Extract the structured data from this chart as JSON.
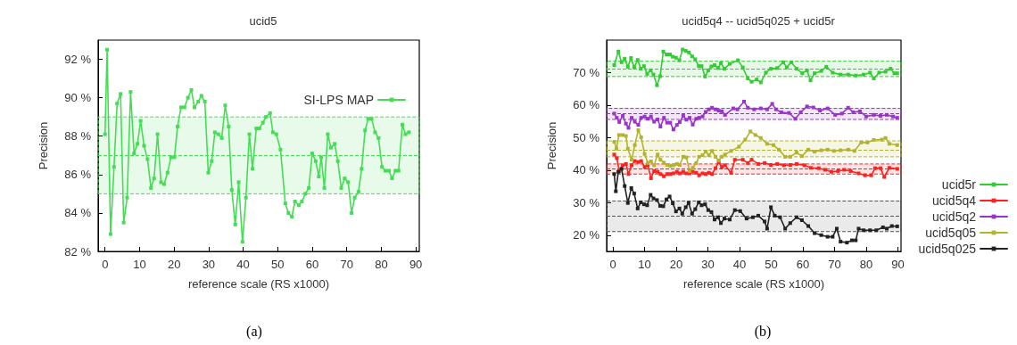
{
  "chart_data": [
    {
      "type": "line",
      "title": "ucid5",
      "xlabel": "reference scale (RS x1000)",
      "ylabel": "Precision",
      "annotations": [
        "(a)"
      ],
      "xlim": [
        -2,
        91
      ],
      "xticks": [
        0,
        10,
        20,
        30,
        40,
        50,
        60,
        70,
        80,
        90
      ],
      "ylim": [
        82,
        93
      ],
      "yticks": [
        {
          "value": 82,
          "label": "82 %"
        },
        {
          "value": 84,
          "label": "84 %"
        },
        {
          "value": 86,
          "label": "86 %"
        },
        {
          "value": 88,
          "label": "88 %"
        },
        {
          "value": 90,
          "label": "90 %"
        },
        {
          "value": 92,
          "label": "92 %"
        }
      ],
      "grid": false,
      "legend": "top right",
      "marker": "square",
      "line_style": "solid",
      "bands": [
        {
          "axis": "y",
          "from": 85,
          "to": 89,
          "color": "#44dd55"
        }
      ],
      "ref_lines": [
        {
          "axis": "y",
          "value": 87,
          "color": "#44dd55",
          "line_style": "dashed"
        }
      ],
      "series": [
        {
          "name": "SI-LPS MAP",
          "color": "#44dd55",
          "x": [
            0,
            0.6,
            1.6,
            2.6,
            3.5,
            4.5,
            5.4,
            6.4,
            7.4,
            8.4,
            9.4,
            10.3,
            11.3,
            12.3,
            13.3,
            14.2,
            15.2,
            16.2,
            17.1,
            18.1,
            19.1,
            20.1,
            21.0,
            22.0,
            23.0,
            24.0,
            25.0,
            25.9,
            27.0,
            27.9,
            28.9,
            29.9,
            30.9,
            31.8,
            32.8,
            33.8,
            34.8,
            35.8,
            36.7,
            37.7,
            38.7,
            39.8,
            40.8,
            41.8,
            42.7,
            43.8,
            44.7,
            45.7,
            46.6,
            47.8,
            48.6,
            49.6,
            50.8,
            52.2,
            53.1,
            54.1,
            55.0,
            56.1,
            57.0,
            58.0,
            59.0,
            60.0,
            61.0,
            61.9,
            62.6,
            63.5,
            64.5,
            65.4,
            66.5,
            67.4,
            68.4,
            69.4,
            70.4,
            71.4,
            72.3,
            73.4,
            74.3,
            75.3,
            76.2,
            77.2,
            78.2,
            79.2,
            80.2,
            81.2,
            82.2,
            83.1,
            84.1,
            85.0,
            86.1,
            87.0,
            88.0
          ],
          "values": [
            88.1,
            92.5,
            82.9,
            86.4,
            89.7,
            90.2,
            83.5,
            84.8,
            90.3,
            87.1,
            87.6,
            88.8,
            87.5,
            86.8,
            85.3,
            85.8,
            88.1,
            85.6,
            85.5,
            86.1,
            86.9,
            86.9,
            88.5,
            89.5,
            89.5,
            90.0,
            90.4,
            89.5,
            89.8,
            90.1,
            89.8,
            86.1,
            86.7,
            88.2,
            88.1,
            87.9,
            89.6,
            88.5,
            85.2,
            83.4,
            85.6,
            82.5,
            84.8,
            88.1,
            86.3,
            88.4,
            88.4,
            88.7,
            89.0,
            89.2,
            88.2,
            88.1,
            87.3,
            84.5,
            84.0,
            83.8,
            84.6,
            84.4,
            84.6,
            85.0,
            85.3,
            87.1,
            86.7,
            85.9,
            86.9,
            85.3,
            88.1,
            87.4,
            87.6,
            86.7,
            85.3,
            85.8,
            85.6,
            84.0,
            84.8,
            85.1,
            86.3,
            88.3,
            88.9,
            88.9,
            88.2,
            87.9,
            86.4,
            86.2,
            86.2,
            85.8,
            86.2,
            86.2,
            88.6,
            88.1,
            88.2
          ]
        }
      ]
    },
    {
      "type": "line",
      "title": "ucid5q4 -- ucid5q025 + ucid5r",
      "xlabel": "reference scale (RS x1000)",
      "ylabel": "Precision",
      "annotations": [
        "(b)"
      ],
      "xlim": [
        -2,
        91
      ],
      "xticks": [
        0,
        10,
        20,
        30,
        40,
        50,
        60,
        70,
        80,
        90
      ],
      "ylim": [
        15,
        80
      ],
      "yticks": [
        {
          "value": 20,
          "label": "20 %"
        },
        {
          "value": 30,
          "label": "30 %"
        },
        {
          "value": 40,
          "label": "40 %"
        },
        {
          "value": 50,
          "label": "50 %"
        },
        {
          "value": 60,
          "label": "60 %"
        },
        {
          "value": 70,
          "label": "70 %"
        }
      ],
      "grid": false,
      "legend": "right",
      "marker": "square",
      "line_style": "solid",
      "bands": [
        {
          "axis": "y",
          "from": 68.8,
          "to": 73.5,
          "color": "#33cc33"
        },
        {
          "axis": "y",
          "from": 55.6,
          "to": 59.0,
          "color": "#9933cc"
        },
        {
          "axis": "y",
          "from": 44.1,
          "to": 49.0,
          "color": "#b3b32e"
        },
        {
          "axis": "y",
          "from": 38.8,
          "to": 41.9,
          "color": "#ff2020"
        },
        {
          "axis": "y",
          "from": 21.1,
          "to": 30.5,
          "color": "#555555"
        }
      ],
      "ref_lines": [
        {
          "axis": "y",
          "value": 71.2,
          "color": "#33cc33",
          "line_style": "dashed"
        },
        {
          "axis": "y",
          "value": 57.4,
          "color": "#9933cc",
          "line_style": "dashed"
        },
        {
          "axis": "y",
          "value": 46.3,
          "color": "#b3b32e",
          "line_style": "dashed"
        },
        {
          "axis": "y",
          "value": 40.4,
          "color": "#ff2020",
          "line_style": "dashed"
        },
        {
          "axis": "y",
          "value": 25.9,
          "color": "#555555",
          "line_style": "dashed"
        }
      ],
      "series": [
        {
          "name": "ucid5r",
          "color": "#33cc33",
          "x": [
            0.4,
            1.7,
            2.7,
            3.7,
            4.7,
            5.7,
            6.7,
            7.8,
            8.8,
            9.8,
            10.8,
            11.9,
            12.8,
            13.9,
            14.9,
            15.9,
            16.9,
            18.0,
            18.9,
            19.9,
            21.0,
            22.0,
            23.0,
            24.0,
            25.0,
            26.0,
            27.1,
            28.0,
            29.1,
            30.1,
            31.1,
            32.1,
            33.2,
            34.1,
            35.2,
            36.9,
            39.5,
            41.0,
            42.6,
            43.8,
            45.4,
            46.7,
            48.3,
            49.9,
            51.9,
            53.8,
            54.9,
            56.3,
            58.0,
            59.8,
            61.3,
            62.4,
            63.7,
            65.8,
            67.4,
            69.4,
            71.9,
            74.3,
            76.7,
            79.2,
            81.2,
            82.4,
            84.1,
            86.1,
            87.7,
            88.9,
            89.8
          ],
          "values": [
            72.3,
            76.5,
            73.2,
            74.3,
            71.8,
            74.5,
            71.6,
            73.9,
            71.2,
            72.0,
            69.6,
            70.7,
            69.4,
            66.1,
            68.9,
            76.5,
            75.6,
            75.6,
            74.9,
            74.6,
            73.8,
            77.1,
            76.7,
            76.2,
            75.0,
            74.1,
            72.0,
            72.0,
            68.8,
            70.7,
            71.9,
            72.3,
            71.4,
            72.9,
            71.2,
            72.7,
            73.8,
            71.6,
            68.2,
            67.2,
            67.9,
            67.0,
            70.0,
            71.2,
            71.4,
            73.2,
            71.6,
            73.2,
            71.2,
            69.8,
            70.7,
            67.6,
            69.8,
            70.5,
            71.8,
            70.0,
            69.4,
            69.4,
            69.1,
            69.4,
            70.0,
            68.2,
            70.0,
            70.3,
            71.2,
            69.8,
            69.8
          ]
        },
        {
          "name": "ucid5q4",
          "color": "#ff2020",
          "x": [
            0.4,
            1.2,
            2.0,
            3.1,
            4.1,
            4.9,
            5.9,
            6.9,
            8.0,
            8.9,
            10.0,
            11.0,
            12.0,
            13.0,
            14.1,
            15.0,
            16.1,
            17.1,
            18.1,
            19.1,
            20.2,
            21.1,
            22.2,
            23.2,
            24.2,
            25.2,
            26.3,
            27.2,
            28.3,
            29.3,
            30.3,
            31.3,
            32.4,
            33.4,
            34.4,
            35.4,
            37.3,
            38.5,
            41.0,
            42.6,
            43.8,
            45.9,
            47.9,
            49.9,
            51.9,
            54.0,
            56.0,
            58.0,
            60.5,
            62.5,
            65.0,
            67.0,
            69.0,
            71.1,
            73.1,
            75.1,
            77.6,
            79.6,
            81.6,
            82.8,
            84.5,
            85.7,
            87.3,
            89.8
          ],
          "values": [
            44.8,
            43.7,
            39.7,
            41.5,
            41.9,
            38.8,
            41.5,
            42.8,
            42.5,
            42.8,
            41.0,
            41.5,
            37.5,
            39.7,
            39.5,
            38.8,
            38.1,
            38.8,
            38.8,
            39.0,
            39.5,
            39.0,
            39.5,
            39.0,
            39.0,
            39.5,
            39.2,
            38.4,
            39.0,
            38.8,
            39.2,
            38.8,
            40.6,
            42.5,
            41.0,
            41.5,
            39.2,
            43.2,
            43.2,
            42.2,
            43.2,
            41.9,
            42.2,
            41.6,
            41.9,
            41.5,
            41.6,
            41.9,
            41.5,
            40.7,
            40.6,
            40.1,
            39.5,
            39.7,
            40.1,
            39.7,
            39.0,
            38.4,
            38.4,
            40.6,
            40.6,
            37.9,
            40.7,
            40.4
          ]
        },
        {
          "name": "ucid5q2",
          "color": "#9933cc",
          "x": [
            0.4,
            1.2,
            2.0,
            3.1,
            4.1,
            4.9,
            5.9,
            6.9,
            8.0,
            8.9,
            10.0,
            11.0,
            12.0,
            13.0,
            14.1,
            15.0,
            16.1,
            17.1,
            18.1,
            19.1,
            20.2,
            21.1,
            22.2,
            23.2,
            24.2,
            25.2,
            26.3,
            27.2,
            28.3,
            29.3,
            30.3,
            31.3,
            32.4,
            33.4,
            34.4,
            35.4,
            38.0,
            39.3,
            41.4,
            42.6,
            44.6,
            46.7,
            48.7,
            50.3,
            51.5,
            53.2,
            55.6,
            57.6,
            59.3,
            61.3,
            63.3,
            65.4,
            67.8,
            70.2,
            72.3,
            74.3,
            75.9,
            78.0,
            80.0,
            82.4,
            84.5,
            86.5,
            88.5,
            89.8
          ],
          "values": [
            57.4,
            56.1,
            54.8,
            56.7,
            54.3,
            53.0,
            56.1,
            54.9,
            53.9,
            56.1,
            56.5,
            55.8,
            56.5,
            54.9,
            55.6,
            53.4,
            56.1,
            54.6,
            54.6,
            52.5,
            53.9,
            54.8,
            56.7,
            55.5,
            56.1,
            54.0,
            55.8,
            56.1,
            56.5,
            57.9,
            58.7,
            59.2,
            58.7,
            58.3,
            58.1,
            57.0,
            59.0,
            58.7,
            61.1,
            59.2,
            58.7,
            59.0,
            58.7,
            60.4,
            58.7,
            57.8,
            57.6,
            55.8,
            57.8,
            59.6,
            59.3,
            58.3,
            59.0,
            57.0,
            57.4,
            59.2,
            57.8,
            58.1,
            56.5,
            57.0,
            56.7,
            57.0,
            56.5,
            56.1
          ]
        },
        {
          "name": "ucid5q05",
          "color": "#b3b32e",
          "x": [
            0.4,
            1.1,
            1.9,
            3.1,
            4.1,
            4.7,
            5.9,
            6.9,
            8.0,
            8.9,
            10.0,
            11.0,
            12.0,
            13.0,
            14.1,
            15.0,
            16.1,
            17.1,
            18.1,
            19.1,
            20.2,
            21.1,
            22.2,
            23.2,
            24.2,
            25.2,
            26.3,
            27.2,
            28.3,
            29.3,
            30.3,
            31.3,
            32.4,
            33.4,
            34.4,
            35.4,
            37.3,
            39.8,
            41.8,
            43.4,
            45.0,
            46.7,
            48.7,
            50.7,
            52.4,
            54.4,
            56.0,
            58.0,
            59.7,
            61.7,
            63.7,
            65.8,
            67.8,
            69.8,
            71.9,
            74.3,
            76.3,
            78.4,
            80.4,
            82.4,
            84.9,
            86.1,
            87.3,
            89.8
          ],
          "values": [
            48.7,
            46.6,
            50.8,
            50.8,
            50.5,
            46.6,
            43.2,
            47.7,
            52.3,
            50.1,
            45.0,
            42.2,
            42.7,
            41.5,
            44.8,
            43.2,
            42.3,
            41.6,
            41.3,
            41.5,
            41.9,
            41.6,
            44.1,
            43.9,
            39.7,
            40.7,
            42.2,
            44.1,
            44.6,
            45.7,
            44.6,
            45.9,
            44.1,
            43.0,
            44.1,
            44.8,
            45.9,
            47.2,
            49.4,
            51.9,
            50.8,
            49.9,
            48.1,
            47.7,
            46.3,
            44.1,
            44.1,
            45.4,
            44.3,
            46.3,
            45.7,
            46.1,
            46.3,
            45.9,
            46.1,
            46.3,
            45.9,
            48.5,
            48.5,
            49.3,
            49.4,
            49.9,
            48.1,
            47.7
          ]
        },
        {
          "name": "ucid5q025",
          "color": "#222222",
          "x": [
            0.4,
            0.9,
            1.7,
            2.7,
            3.7,
            4.7,
            5.8,
            6.7,
            7.8,
            8.8,
            9.8,
            10.8,
            11.9,
            12.8,
            13.9,
            14.9,
            15.9,
            16.9,
            17.9,
            18.9,
            19.9,
            21.0,
            21.9,
            23.0,
            23.9,
            25.0,
            26.0,
            27.1,
            28.0,
            29.1,
            30.1,
            31.1,
            32.1,
            33.2,
            34.1,
            35.2,
            36.9,
            38.5,
            40.2,
            42.2,
            44.2,
            45.9,
            47.9,
            48.7,
            49.9,
            51.1,
            52.8,
            54.4,
            56.0,
            58.0,
            59.7,
            61.7,
            63.7,
            65.8,
            67.8,
            69.4,
            70.7,
            71.9,
            73.9,
            75.5,
            76.7,
            77.6,
            79.2,
            81.2,
            83.2,
            85.3,
            86.5,
            88.1,
            89.8
          ],
          "values": [
            38.8,
            33.5,
            39.5,
            40.4,
            35.1,
            29.9,
            34.5,
            32.8,
            28.2,
            30.1,
            29.5,
            29.2,
            32.4,
            31.3,
            30.8,
            29.0,
            28.9,
            31.0,
            31.9,
            29.8,
            27.3,
            28.2,
            26.6,
            28.6,
            29.9,
            26.6,
            28.0,
            30.1,
            29.2,
            29.5,
            27.7,
            27.1,
            24.8,
            25.5,
            23.7,
            25.1,
            24.8,
            27.7,
            27.4,
            25.1,
            25.5,
            26.0,
            24.2,
            22.0,
            28.6,
            26.0,
            25.5,
            22.0,
            23.7,
            25.5,
            24.6,
            22.8,
            20.6,
            20.0,
            19.5,
            19.5,
            22.0,
            18.0,
            17.7,
            18.4,
            18.4,
            22.0,
            21.5,
            21.5,
            21.5,
            22.4,
            22.0,
            22.8,
            22.7
          ]
        }
      ]
    }
  ]
}
